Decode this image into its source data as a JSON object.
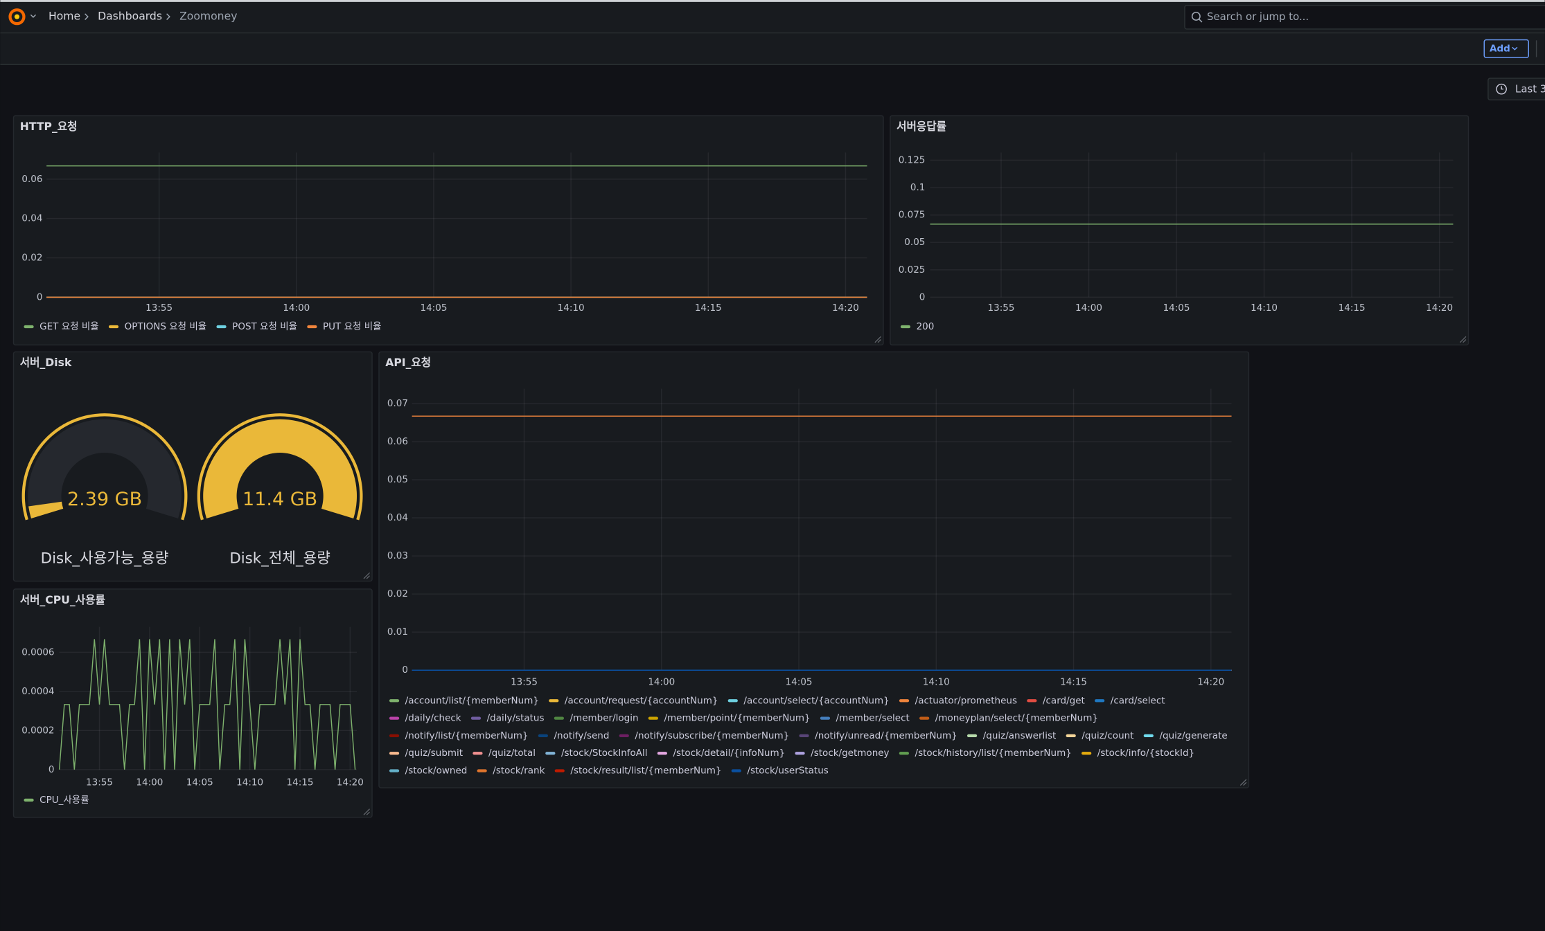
{
  "header": {
    "breadcrumbs": [
      "Home",
      "Dashboards",
      "Zoomoney"
    ],
    "search_placeholder": "Search or jump to...",
    "add_button": "Add",
    "time_picker": "Last 3"
  },
  "chart_data": [
    {
      "type": "line",
      "title": "HTTP_요청",
      "x": [
        "13:50:54",
        "14:20:47"
      ],
      "xlim": [
        "13:50:54",
        "14:20:47"
      ],
      "xticks": [
        "13:55",
        "14:00",
        "14:05",
        "14:10",
        "14:15",
        "14:20"
      ],
      "ylim": [
        0,
        0.0735
      ],
      "yticks": [
        0,
        0.02,
        0.04,
        0.06
      ],
      "grid": true,
      "legend": "bottom",
      "series": [
        {
          "name": "GET 요청 비율",
          "color": "#7EB26D",
          "values": [
            0.0667,
            0.0667
          ]
        },
        {
          "name": "OPTIONS 요청 비율",
          "color": "#EAB839",
          "values": [
            0,
            0
          ]
        },
        {
          "name": "POST 요청 비율",
          "color": "#6ED0E0",
          "values": [
            0,
            0
          ]
        },
        {
          "name": "PUT 요청 비율",
          "color": "#EF843C",
          "values": [
            0,
            0
          ]
        }
      ]
    },
    {
      "type": "line",
      "title": "서버응답률",
      "x": [
        "13:50:57",
        "14:20:47"
      ],
      "xlim": [
        "13:50:57",
        "14:20:47"
      ],
      "xticks": [
        "13:55",
        "14:00",
        "14:05",
        "14:10",
        "14:15",
        "14:20"
      ],
      "ylim": [
        0,
        0.132
      ],
      "yticks": [
        0,
        0.025,
        0.05,
        0.075,
        0.1,
        0.125
      ],
      "grid": true,
      "legend": "bottom",
      "series": [
        {
          "name": "200",
          "color": "#7EB26D",
          "values": [
            0.0667,
            0.0667
          ]
        }
      ]
    },
    {
      "type": "gauge",
      "title": "서버_Disk",
      "min": 2,
      "max": 11.4,
      "gauges": [
        {
          "name": "Disk_사용가능_용량",
          "value": 2.39,
          "value_label": "2.39 GB",
          "color": "#EAB839"
        },
        {
          "name": "Disk_전체_용량",
          "value": 11.4,
          "value_label": "11.4 GB",
          "color": "#EAB839"
        }
      ]
    },
    {
      "type": "line",
      "title": "서버_CPU_사용률",
      "x": [
        "13:51:00",
        "13:51:30",
        "13:52:00",
        "13:52:30",
        "13:53:00",
        "13:53:30",
        "13:54:00",
        "13:54:30",
        "13:55:00",
        "13:55:30",
        "13:56:00",
        "13:56:30",
        "13:57:00",
        "13:57:30",
        "13:58:00",
        "13:58:30",
        "13:59:00",
        "13:59:30",
        "14:00:00",
        "14:00:30",
        "14:01:00",
        "14:01:30",
        "14:02:00",
        "14:02:30",
        "14:03:00",
        "14:03:30",
        "14:04:00",
        "14:04:30",
        "14:05:00",
        "14:05:30",
        "14:06:00",
        "14:06:30",
        "14:07:00",
        "14:07:30",
        "14:08:00",
        "14:08:30",
        "14:09:00",
        "14:09:30",
        "14:10:00",
        "14:10:30",
        "14:11:00",
        "14:11:30",
        "14:12:00",
        "14:12:30",
        "14:13:00",
        "14:13:30",
        "14:14:00",
        "14:14:30",
        "14:15:00",
        "14:15:30",
        "14:16:00",
        "14:16:30",
        "14:17:00",
        "14:17:30",
        "14:18:00",
        "14:18:30",
        "14:19:00",
        "14:19:30",
        "14:20:00",
        "14:20:30"
      ],
      "xlim": [
        "13:51:00",
        "14:20:40"
      ],
      "xticks": [
        "13:55",
        "14:00",
        "14:05",
        "14:10",
        "14:15",
        "14:20"
      ],
      "ylim": [
        0,
        0.00073
      ],
      "yticks": [
        0,
        0.0002,
        0.0004,
        0.0006
      ],
      "grid": true,
      "legend": "bottom",
      "series": [
        {
          "name": "CPU_사용률",
          "color": "#7EB26D",
          "values": [
            0,
            0.000333,
            0.000333,
            0,
            0.000333,
            0.000333,
            0.000333,
            0.000667,
            0.000333,
            0.000667,
            0.000333,
            0.000333,
            0.000333,
            0,
            0.000333,
            0.000333,
            0.000667,
            0,
            0.000667,
            0.000333,
            0.000667,
            0,
            0.000667,
            0,
            0.000667,
            0.000333,
            0.000667,
            0,
            0.000333,
            0.000333,
            0.000333,
            0.000667,
            0,
            0.000333,
            0.000333,
            0.000667,
            0,
            0.000667,
            0.000333,
            0,
            0.000333,
            0.000333,
            0.000333,
            0.000333,
            0.000667,
            0.000333,
            0.000667,
            0,
            0.000667,
            0.000333,
            0.000333,
            0,
            0.000333,
            0.000333,
            0.000333,
            0,
            0.000333,
            0.000333,
            0.000333,
            0
          ]
        }
      ]
    },
    {
      "type": "line",
      "title": "API_요청",
      "x": [
        "13:50:55",
        "14:20:45"
      ],
      "xlim": [
        "13:50:55",
        "14:20:45"
      ],
      "xticks": [
        "13:55",
        "14:00",
        "14:05",
        "14:10",
        "14:15",
        "14:20"
      ],
      "ylim": [
        0,
        0.0739
      ],
      "yticks": [
        0,
        0.01,
        0.02,
        0.03,
        0.04,
        0.05,
        0.06,
        0.07
      ],
      "grid": true,
      "legend": "bottom",
      "series": [
        {
          "name": "/account/list/{memberNum}",
          "color": "#7EB26D",
          "values": [
            0,
            0
          ]
        },
        {
          "name": "/account/request/{accountNum}",
          "color": "#EAB839",
          "values": [
            0,
            0
          ]
        },
        {
          "name": "/account/select/{accountNum}",
          "color": "#6ED0E0",
          "values": [
            0,
            0
          ]
        },
        {
          "name": "/actuator/prometheus",
          "color": "#EF843C",
          "values": [
            0.0667,
            0.0667
          ]
        },
        {
          "name": "/card/get",
          "color": "#E24D42",
          "values": [
            0,
            0
          ]
        },
        {
          "name": "/card/select",
          "color": "#1F78C1",
          "values": [
            0,
            0
          ]
        },
        {
          "name": "/daily/check",
          "color": "#BA43A9",
          "values": [
            0,
            0
          ]
        },
        {
          "name": "/daily/status",
          "color": "#705DA0",
          "values": [
            0,
            0
          ]
        },
        {
          "name": "/member/login",
          "color": "#508642",
          "values": [
            0,
            0
          ]
        },
        {
          "name": "/member/point/{memberNum}",
          "color": "#CCA300",
          "values": [
            0,
            0
          ]
        },
        {
          "name": "/member/select",
          "color": "#447EBC",
          "values": [
            0,
            0
          ]
        },
        {
          "name": "/moneyplan/select/{memberNum}",
          "color": "#C15C17",
          "values": [
            0,
            0
          ]
        },
        {
          "name": "/notify/list/{memberNum}",
          "color": "#890F02",
          "values": [
            0,
            0
          ]
        },
        {
          "name": "/notify/send",
          "color": "#0A437C",
          "values": [
            0,
            0
          ]
        },
        {
          "name": "/notify/subscribe/{memberNum}",
          "color": "#6D1F62",
          "values": [
            0,
            0
          ]
        },
        {
          "name": "/notify/unread/{memberNum}",
          "color": "#584477",
          "values": [
            0,
            0
          ]
        },
        {
          "name": "/quiz/answerlist",
          "color": "#B7DBAB",
          "values": [
            0,
            0
          ]
        },
        {
          "name": "/quiz/count",
          "color": "#F4D598",
          "values": [
            0,
            0
          ]
        },
        {
          "name": "/quiz/generate",
          "color": "#70DBED",
          "values": [
            0,
            0
          ]
        },
        {
          "name": "/quiz/submit",
          "color": "#F9BA8F",
          "values": [
            0,
            0
          ]
        },
        {
          "name": "/quiz/total",
          "color": "#F29191",
          "values": [
            0,
            0
          ]
        },
        {
          "name": "/stock/StockInfoAll",
          "color": "#82B5D8",
          "values": [
            0,
            0
          ]
        },
        {
          "name": "/stock/detail/{infoNum}",
          "color": "#E5A8E2",
          "values": [
            0,
            0
          ]
        },
        {
          "name": "/stock/getmoney",
          "color": "#AEA2E0",
          "values": [
            0,
            0
          ]
        },
        {
          "name": "/stock/history/list/{memberNum}",
          "color": "#629E51",
          "values": [
            0,
            0
          ]
        },
        {
          "name": "/stock/info/{stockId}",
          "color": "#E5AC0E",
          "values": [
            0,
            0
          ]
        },
        {
          "name": "/stock/owned",
          "color": "#64B0C8",
          "values": [
            0,
            0
          ]
        },
        {
          "name": "/stock/rank",
          "color": "#E0752D",
          "values": [
            0,
            0
          ]
        },
        {
          "name": "/stock/result/list/{memberNum}",
          "color": "#BF1B00",
          "values": [
            0,
            0
          ]
        },
        {
          "name": "/stock/userStatus",
          "color": "#0A50A1",
          "values": [
            0,
            0
          ]
        }
      ]
    }
  ]
}
